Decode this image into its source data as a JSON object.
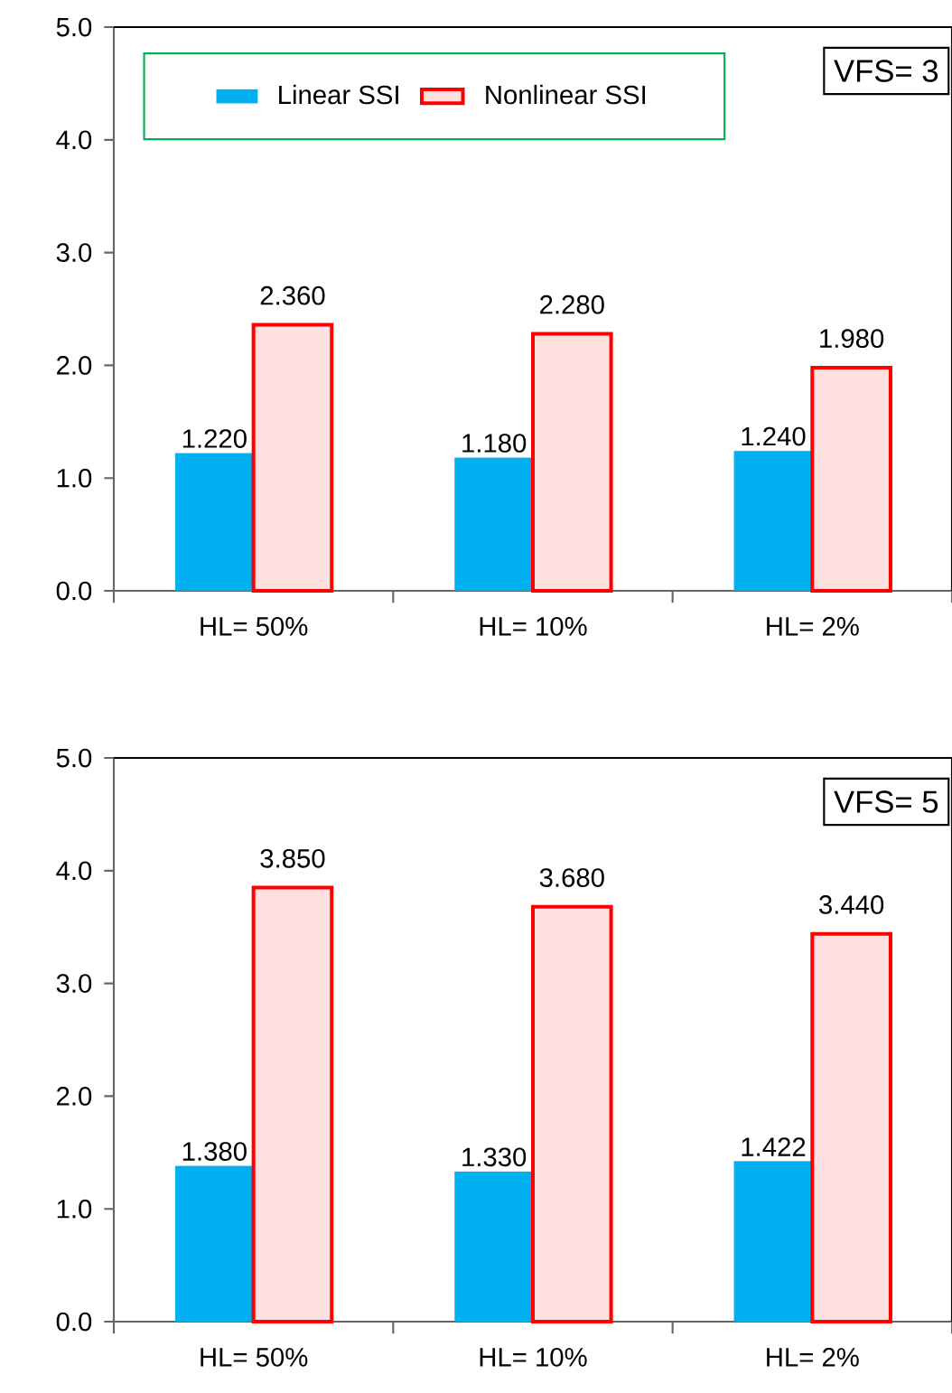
{
  "chart_data": [
    {
      "type": "bar",
      "categories": [
        "HL= 50%",
        "HL= 10%",
        "HL= 2%"
      ],
      "series": [
        {
          "name": "Linear SSI",
          "color": "#00b0f0",
          "values": [
            1.22,
            1.18,
            1.24
          ],
          "value_labels": [
            "1.220",
            "1.180",
            "1.240"
          ]
        },
        {
          "name": "Nonlinear SSI",
          "color": "#ff0000",
          "values": [
            2.36,
            2.28,
            1.98
          ],
          "value_labels": [
            "2.360",
            "2.280",
            "1.980"
          ]
        }
      ],
      "ylim": [
        0,
        5
      ],
      "yticks": [
        {
          "value": 0,
          "label": "0.0"
        },
        {
          "value": 1,
          "label": "1.0"
        },
        {
          "value": 2,
          "label": "2.0"
        },
        {
          "value": 3,
          "label": "3.0"
        },
        {
          "value": 4,
          "label": "4.0"
        },
        {
          "value": 5,
          "label": "5.0"
        }
      ],
      "legend": "top left",
      "annotations": [
        "VFS= 3"
      ]
    },
    {
      "type": "bar",
      "categories": [
        "HL= 50%",
        "HL= 10%",
        "HL= 2%"
      ],
      "series": [
        {
          "color": "#00b0f0",
          "values": [
            1.38,
            1.33,
            1.422
          ],
          "value_labels": [
            "1.380",
            "1.330",
            "1.422"
          ]
        },
        {
          "color": "#ff0000",
          "values": [
            3.85,
            3.68,
            3.44
          ],
          "value_labels": [
            "3.850",
            "3.680",
            "3.440"
          ]
        }
      ],
      "ylim": [
        0,
        5
      ],
      "yticks": [
        {
          "value": 0,
          "label": "0.0"
        },
        {
          "value": 1,
          "label": "1.0"
        },
        {
          "value": 2,
          "label": "2.0"
        },
        {
          "value": 3,
          "label": "3.0"
        },
        {
          "value": 4,
          "label": "4.0"
        },
        {
          "value": 5,
          "label": "5.0"
        }
      ],
      "legend": false,
      "annotations": [
        "VFS= 5"
      ]
    }
  ]
}
